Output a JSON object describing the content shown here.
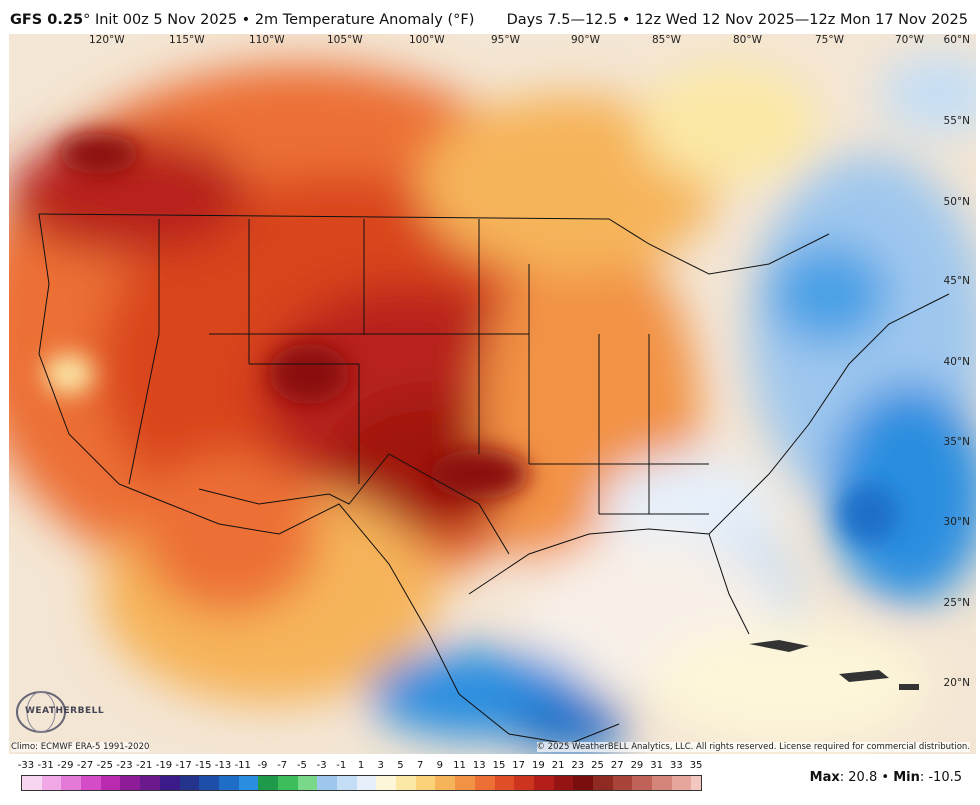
{
  "header": {
    "model": "GFS 0.25",
    "degree": "°",
    "init": "Init 00z 5 Nov 2025",
    "sep": "•",
    "variable": "2m Temperature Anomaly (°F)",
    "range": "Days 7.5—12.5 • 12z Wed 12 Nov 2025—12z Mon 17 Nov 2025"
  },
  "map": {
    "lon_labels": [
      "120°W",
      "115°W",
      "110°W",
      "105°W",
      "100°W",
      "95°W",
      "90°W",
      "85°W",
      "80°W",
      "75°W",
      "70°W"
    ],
    "lat_labels": [
      "60°N",
      "55°N",
      "50°N",
      "45°N",
      "40°N",
      "35°N",
      "30°N",
      "25°N",
      "20°N"
    ],
    "logo": "WEATHERBELL",
    "climo": "Climo: ECMWF ERA-5 1991-2020",
    "copyright": "© 2025 WeatherBELL Analytics, LLC. All rights reserved. License required for commercial distribution."
  },
  "legend": {
    "ticks": [
      "-33",
      "-31",
      "-29",
      "-27",
      "-25",
      "-23",
      "-21",
      "-19",
      "-17",
      "-15",
      "-13",
      "-11",
      "-9",
      "-7",
      "-5",
      "-3",
      "-1",
      "1",
      "3",
      "5",
      "7",
      "9",
      "11",
      "13",
      "15",
      "17",
      "19",
      "21",
      "23",
      "25",
      "27",
      "29",
      "31",
      "33",
      "35"
    ],
    "colors": [
      "#f7d6f2",
      "#f0a8e6",
      "#e47ad8",
      "#d44cc8",
      "#b82ab0",
      "#8e1c98",
      "#6a1a8c",
      "#3b1a8a",
      "#24348c",
      "#1e4ea8",
      "#1e6ec8",
      "#2a8ee0",
      "#1f9a4a",
      "#3cbf5a",
      "#7ad88a",
      "#9fc7ee",
      "#c4def6",
      "#e6f0fb",
      "#fdf6d8",
      "#fbe8a6",
      "#f9d27a",
      "#f6b45a",
      "#f29244",
      "#ec7036",
      "#df4e27",
      "#cc3420",
      "#b31e19",
      "#961313",
      "#7a0d0d",
      "#8f2a22",
      "#a8443a",
      "#c06258",
      "#d48478",
      "#e6a69c",
      "#f2c8c0"
    ]
  },
  "stats": {
    "max_label": "Max",
    "max_value": "20.8",
    "min_label": "Min",
    "min_value": "-10.5"
  }
}
